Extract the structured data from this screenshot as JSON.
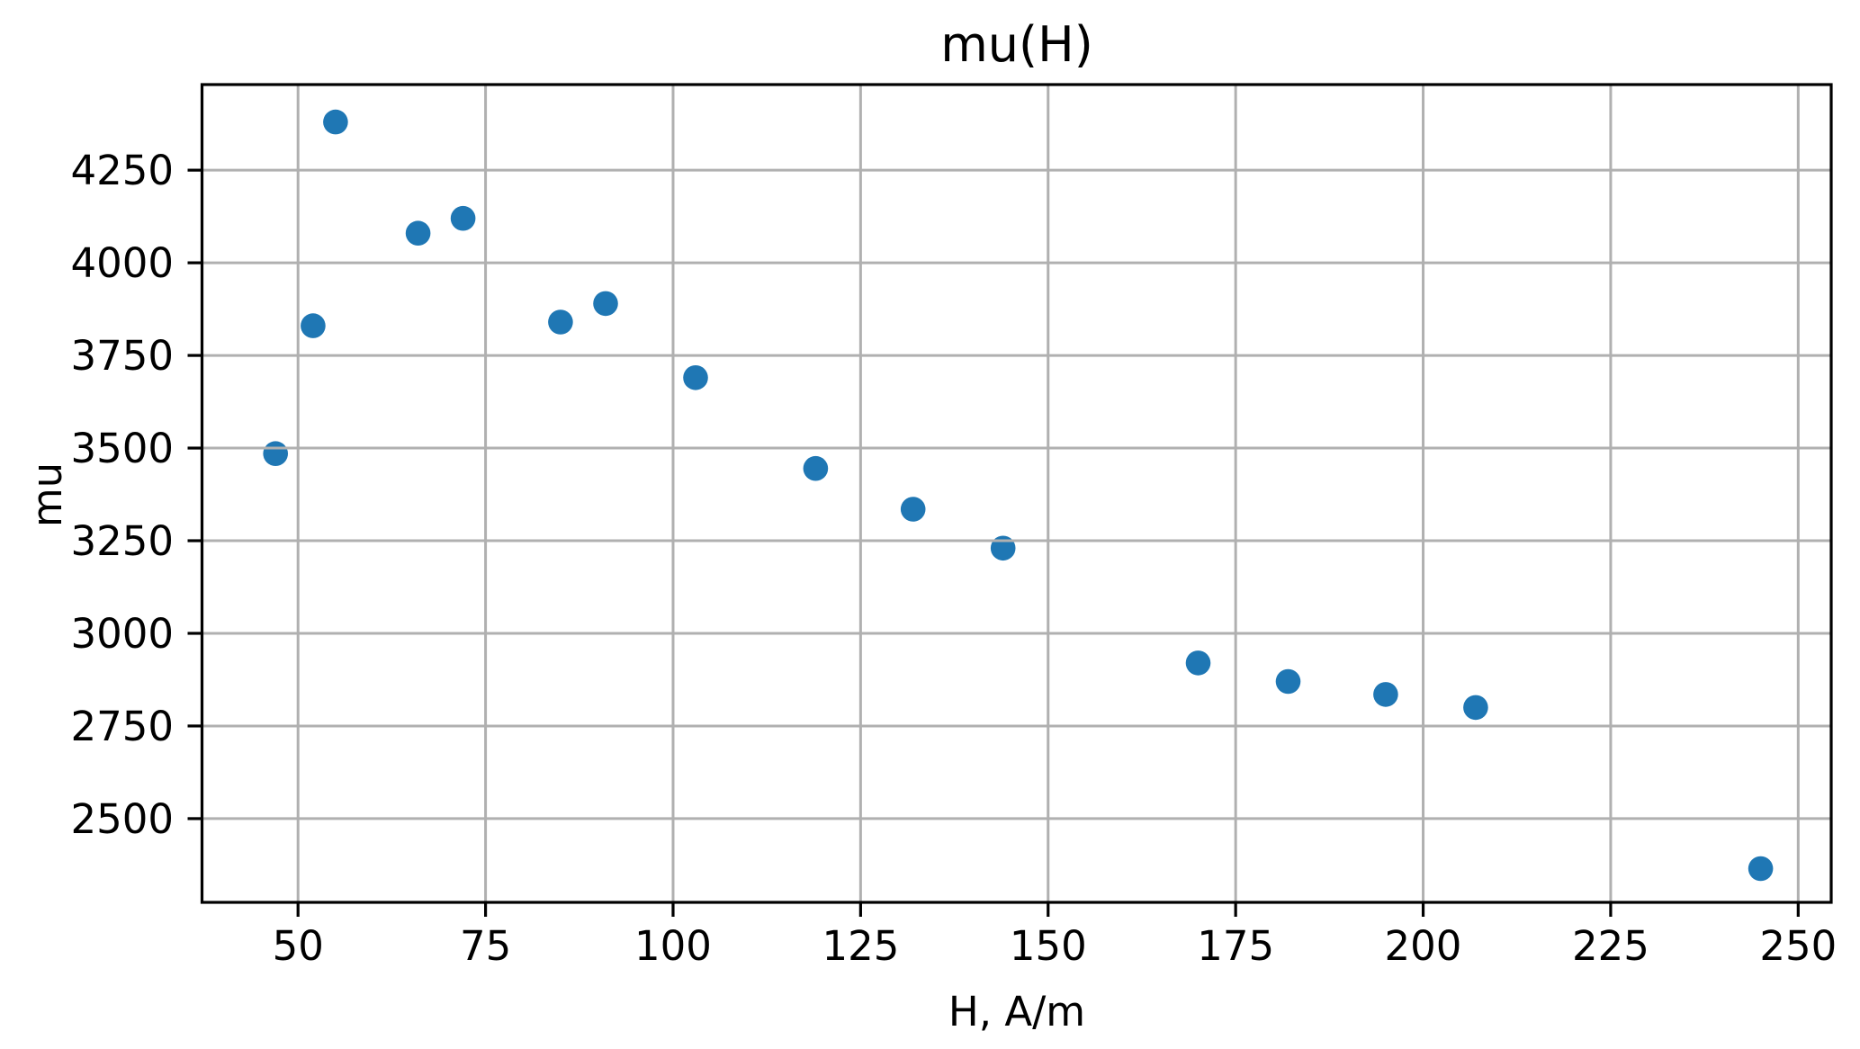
{
  "chart_data": {
    "type": "scatter",
    "title": "mu(H)",
    "xlabel": "H, A/m",
    "ylabel": "mu",
    "series": [
      {
        "name": "mu",
        "x": [
          47,
          52,
          55,
          66,
          72,
          85,
          91,
          103,
          119,
          132,
          144,
          170,
          182,
          195,
          207,
          245
        ],
        "y": [
          3485,
          3830,
          4380,
          4080,
          4120,
          3840,
          3890,
          3690,
          3445,
          3335,
          3230,
          2920,
          2870,
          2835,
          2800,
          2365
        ]
      }
    ],
    "xticks": [
      50,
      75,
      100,
      125,
      150,
      175,
      200,
      225,
      250
    ],
    "yticks": [
      2500,
      2750,
      3000,
      3250,
      3500,
      3750,
      4000,
      4250
    ],
    "xlim": [
      37.2,
      254.4
    ],
    "ylim": [
      2274,
      4481
    ],
    "grid": true,
    "grid_over_points": true,
    "legend": null,
    "colors": {
      "marker": "#1f77b4",
      "grid": "#b0b0b0",
      "axis": "#000000",
      "text": "#000000",
      "background": "#ffffff"
    }
  }
}
